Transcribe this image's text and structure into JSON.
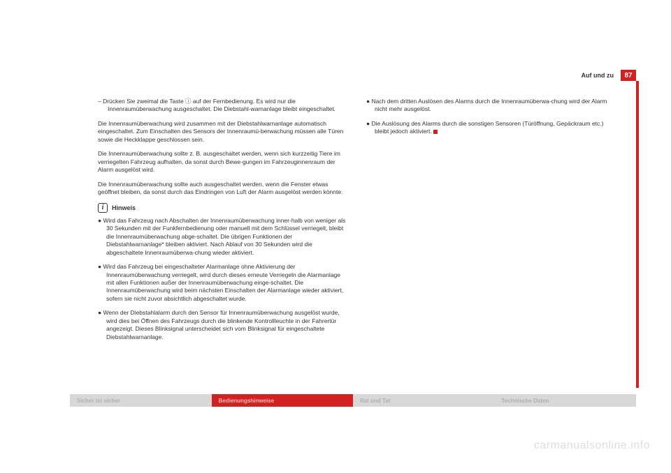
{
  "header": {
    "section_title": "Auf und zu",
    "page_number": "87"
  },
  "left_column": {
    "instruction": "–   Drücken Sie zweimal die Taste ⓘ auf der Fernbedienung. Es wird nur die Innenraumüberwachung ausgeschaltet. Die Diebstahl-warnanlage bleibt eingeschaltet.",
    "para1": "Die Innenraumüberwachung wird zusammen mit der Diebstahlwarnanlage automatisch eingeschaltet. Zum Einschalten des Sensors der Innenraumü-berwachung müssen alle Türen sowie die Heckklappe geschlossen sein.",
    "para2": "Die Innenraumüberwachung sollte z. B. ausgeschaltet werden, wenn sich kurzzeitig Tiere im verriegelten Fahrzeug aufhalten, da sonst durch Bewe-gungen im Fahrzeuginnenraum der Alarm ausgelöst wird.",
    "para3": "Die Innenraumüberwachung sollte auch ausgeschaltet werden, wenn die Fenster etwas geöffnet bleiben, da sonst durch das Eindringen von Luft der Alarm ausgelöst werden könnte.",
    "hinweis_label": "Hinweis",
    "bullet1": "●   Wird das Fahrzeug nach Abschalten der Innenraumüberwachung inner-halb von weniger als 30 Sekunden mit der Funkfernbedienung oder manuell mit dem Schlüssel verriegelt, bleibt die Innenraumüberwachung abge-schaltet. Die übrigen Funktionen der Diebstahlwarnanlage* bleiben aktiviert. Nach Ablauf von 30 Sekunden wird die abgeschaltete Innenraumüberwa-chung wieder aktiviert.",
    "bullet2": "●   Wird das Fahrzeug bei eingeschalteter Alarmanlage ohne Aktivierung der Innenraumüberwachung verriegelt, wird durch dieses erneute Verriegeln die Alarmanlage mit allen Funktionen außer der Innenraumüberwachung einge-schaltet. Die Innenraumüberwachung wird beim nächsten Einschalten der Alarmanlage wieder aktiviert, sofern sie nicht zuvor absichtlich abgeschaltet wurde.",
    "bullet3": "●   Wenn der Diebstahlalarm durch den Sensor für Innenraumüberwachung ausgelöst wurde, wird dies bei Öffnen des Fahrzeugs durch die blinkende Kontrollleuchte in der Fahrertür angezeigt. Dieses Blinksignal unterscheidet sich vom Blinksignal für eingeschaltete Diebstahlwarnanlage."
  },
  "right_column": {
    "bullet4": "●   Nach dem dritten Auslösen des Alarms durch die Innenraumüberwa-chung wird der Alarm nicht mehr ausgelöst.",
    "bullet5": "●   Die Auslösung des Alarms durch die sonstigen Sensoren (Türöffnung, Gepäckraum etc.) bleibt jedoch aktiviert."
  },
  "footer": {
    "tab1": "Sicher ist sicher",
    "tab2": "Bedienungshinweise",
    "tab3": "Rat und Tat",
    "tab4": "Technische Daten"
  },
  "watermark": "carmanualsonline.info"
}
